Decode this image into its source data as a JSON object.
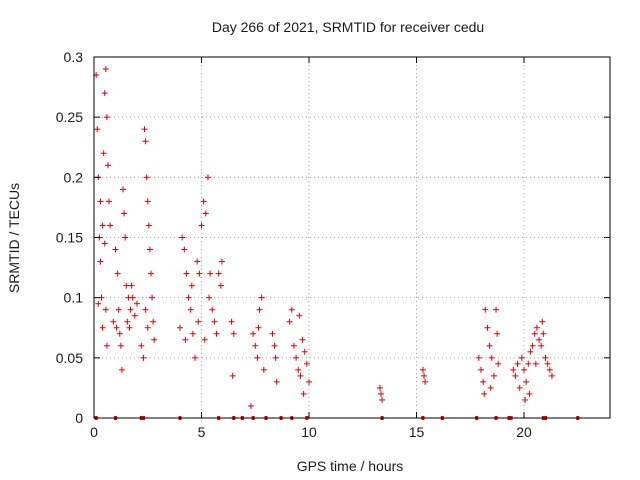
{
  "chart_data": {
    "type": "scatter",
    "title": "Day 266 of 2021, SRMTID for receiver cedu",
    "xlabel": "GPS time / hours",
    "ylabel": "SRMTID / TECUs",
    "xlim": [
      0,
      24
    ],
    "ylim": [
      0,
      0.3
    ],
    "x_ticks": [
      0,
      5,
      10,
      15,
      20
    ],
    "y_ticks": [
      0,
      0.05,
      0.1,
      0.15,
      0.2,
      0.25,
      0.3
    ],
    "y_tick_labels": [
      "0",
      "0.05",
      "0.1",
      "0.15",
      "0.2",
      "0.25",
      "0.3"
    ],
    "grid": true,
    "marker": "+",
    "series_color": "#e00000",
    "series": [
      {
        "name": "SRMTID",
        "points": [
          [
            0.1,
            0.285
          ],
          [
            0.15,
            0.24
          ],
          [
            0.2,
            0.2
          ],
          [
            0.25,
            0.15
          ],
          [
            0.3,
            0.13
          ],
          [
            0.35,
            0.1
          ],
          [
            0.4,
            0.075
          ],
          [
            0.45,
            0.22
          ],
          [
            0.5,
            0.27
          ],
          [
            0.55,
            0.29
          ],
          [
            0.6,
            0.25
          ],
          [
            0.65,
            0.21
          ],
          [
            0.7,
            0.18
          ],
          [
            0.75,
            0.16
          ],
          [
            0.3,
            0.18
          ],
          [
            0.4,
            0.16
          ],
          [
            0.5,
            0.145
          ],
          [
            0.6,
            0.06
          ],
          [
            0.55,
            0.09
          ],
          [
            0.2,
            0.095
          ],
          [
            0.9,
            0.08
          ],
          [
            1.0,
            0.14
          ],
          [
            1.1,
            0.12
          ],
          [
            1.15,
            0.09
          ],
          [
            1.2,
            0.07
          ],
          [
            1.25,
            0.06
          ],
          [
            1.3,
            0.04
          ],
          [
            1.35,
            0.19
          ],
          [
            1.4,
            0.17
          ],
          [
            1.45,
            0.15
          ],
          [
            1.5,
            0.11
          ],
          [
            1.55,
            0.08
          ],
          [
            1.6,
            0.1
          ],
          [
            1.7,
            0.09
          ],
          [
            1.8,
            0.1
          ],
          [
            1.9,
            0.085
          ],
          [
            2.0,
            0.095
          ],
          [
            1.05,
            0.075
          ],
          [
            1.65,
            0.075
          ],
          [
            1.75,
            0.11
          ],
          [
            2.2,
            0.06
          ],
          [
            2.3,
            0.05
          ],
          [
            2.35,
            0.24
          ],
          [
            2.4,
            0.23
          ],
          [
            2.45,
            0.2
          ],
          [
            2.5,
            0.18
          ],
          [
            2.55,
            0.16
          ],
          [
            2.6,
            0.14
          ],
          [
            2.65,
            0.12
          ],
          [
            2.7,
            0.1
          ],
          [
            2.75,
            0.08
          ],
          [
            2.8,
            0.065
          ],
          [
            2.5,
            0.075
          ],
          [
            2.4,
            0.09
          ],
          [
            4.0,
            0.075
          ],
          [
            4.1,
            0.15
          ],
          [
            4.2,
            0.14
          ],
          [
            4.3,
            0.12
          ],
          [
            4.4,
            0.1
          ],
          [
            4.5,
            0.09
          ],
          [
            4.6,
            0.07
          ],
          [
            4.7,
            0.05
          ],
          [
            4.8,
            0.13
          ],
          [
            4.9,
            0.12
          ],
          [
            5.0,
            0.16
          ],
          [
            5.1,
            0.18
          ],
          [
            5.2,
            0.17
          ],
          [
            5.3,
            0.2
          ],
          [
            5.4,
            0.12
          ],
          [
            5.5,
            0.09
          ],
          [
            5.6,
            0.08
          ],
          [
            4.25,
            0.065
          ],
          [
            4.55,
            0.11
          ],
          [
            4.85,
            0.08
          ],
          [
            5.15,
            0.065
          ],
          [
            5.35,
            0.1
          ],
          [
            5.7,
            0.07
          ],
          [
            5.8,
            0.12
          ],
          [
            5.9,
            0.11
          ],
          [
            5.95,
            0.13
          ],
          [
            6.4,
            0.08
          ],
          [
            6.5,
            0.07
          ],
          [
            6.45,
            0.035
          ],
          [
            7.3,
            0.01
          ],
          [
            7.4,
            0.07
          ],
          [
            7.5,
            0.06
          ],
          [
            7.6,
            0.05
          ],
          [
            7.7,
            0.09
          ],
          [
            7.8,
            0.1
          ],
          [
            7.9,
            0.04
          ],
          [
            7.65,
            0.075
          ],
          [
            8.3,
            0.07
          ],
          [
            8.4,
            0.06
          ],
          [
            8.5,
            0.03
          ],
          [
            8.45,
            0.05
          ],
          [
            9.1,
            0.08
          ],
          [
            9.2,
            0.09
          ],
          [
            9.3,
            0.06
          ],
          [
            9.4,
            0.05
          ],
          [
            9.5,
            0.04
          ],
          [
            9.6,
            0.035
          ],
          [
            9.7,
            0.065
          ],
          [
            9.8,
            0.055
          ],
          [
            9.9,
            0.045
          ],
          [
            10.0,
            0.03
          ],
          [
            9.55,
            0.085
          ],
          [
            9.75,
            0.02
          ],
          [
            13.3,
            0.025
          ],
          [
            13.35,
            0.02
          ],
          [
            13.4,
            0.015
          ],
          [
            15.3,
            0.04
          ],
          [
            15.35,
            0.035
          ],
          [
            15.4,
            0.03
          ],
          [
            17.9,
            0.05
          ],
          [
            18.0,
            0.04
          ],
          [
            18.1,
            0.03
          ],
          [
            18.2,
            0.09
          ],
          [
            18.3,
            0.075
          ],
          [
            18.4,
            0.06
          ],
          [
            18.5,
            0.05
          ],
          [
            18.6,
            0.035
          ],
          [
            18.7,
            0.09
          ],
          [
            18.75,
            0.07
          ],
          [
            18.8,
            0.045
          ],
          [
            18.15,
            0.02
          ],
          [
            18.45,
            0.025
          ],
          [
            19.5,
            0.04
          ],
          [
            19.6,
            0.035
          ],
          [
            19.7,
            0.045
          ],
          [
            19.8,
            0.025
          ],
          [
            19.9,
            0.05
          ],
          [
            20.0,
            0.04
          ],
          [
            20.1,
            0.03
          ],
          [
            20.2,
            0.045
          ],
          [
            20.3,
            0.055
          ],
          [
            20.4,
            0.06
          ],
          [
            20.5,
            0.07
          ],
          [
            20.6,
            0.075
          ],
          [
            20.7,
            0.065
          ],
          [
            20.8,
            0.06
          ],
          [
            20.9,
            0.07
          ],
          [
            21.0,
            0.05
          ],
          [
            21.1,
            0.045
          ],
          [
            21.2,
            0.04
          ],
          [
            21.3,
            0.035
          ],
          [
            20.05,
            0.015
          ],
          [
            20.25,
            0.02
          ],
          [
            20.55,
            0.045
          ],
          [
            20.85,
            0.08
          ]
        ],
        "zero_markers_x": [
          0.1,
          1.0,
          2.2,
          2.3,
          4.0,
          5.8,
          6.5,
          6.9,
          7.4,
          8.0,
          8.7,
          9.2,
          9.9,
          13.4,
          15.3,
          16.2,
          17.8,
          18.7,
          19.3,
          19.4,
          20.9,
          21.0,
          22.5
        ]
      }
    ]
  }
}
